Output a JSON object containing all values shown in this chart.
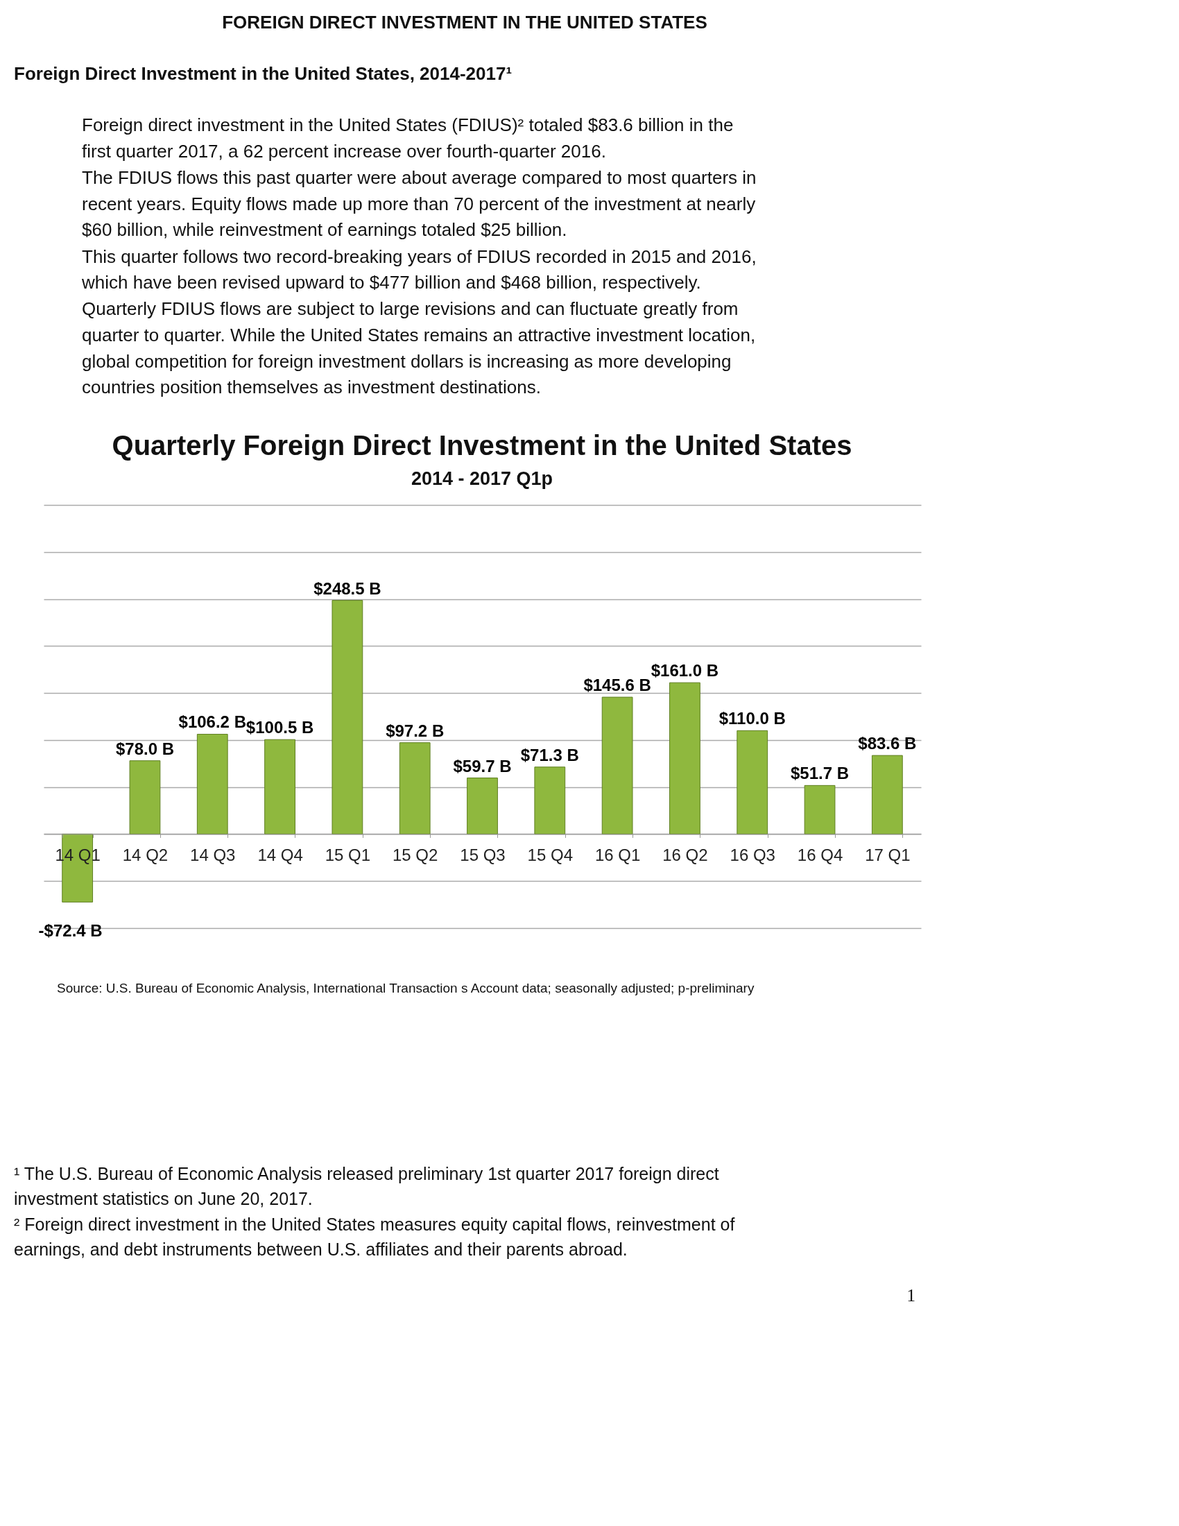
{
  "chart_data": {
    "type": "bar",
    "title": "Quarterly Foreign Direct Investment in the United States",
    "subtitle": "2014 - 2017 Q1p",
    "categories": [
      "14 Q1",
      "14 Q2",
      "14 Q3",
      "14 Q4",
      "15 Q1",
      "15 Q2",
      "15 Q3",
      "15 Q4",
      "16 Q1",
      "16 Q2",
      "16 Q3",
      "16 Q4",
      "17 Q1"
    ],
    "values": [
      -72.4,
      78.0,
      106.2,
      100.5,
      248.5,
      97.2,
      59.7,
      71.3,
      145.6,
      161.0,
      110.0,
      51.7,
      83.6
    ],
    "value_labels": [
      "-$72.4 B",
      "$78.0 B",
      "$106.2 B",
      "$100.5 B",
      "$248.5 B",
      "$97.2 B",
      "$59.7 B",
      "$71.3 B",
      "$145.6 B",
      "$161.0 B",
      "$110.0 B",
      "$51.7 B",
      "$83.6 B"
    ],
    "color": "#8fb83e",
    "ylim": [
      -100,
      350
    ],
    "yticks": [
      {
        "value": -100,
        "label": null
      },
      {
        "value": -50,
        "label": null
      },
      {
        "value": 0,
        "label": null
      },
      {
        "value": 50,
        "label": null
      },
      {
        "value": 100,
        "label": null
      },
      {
        "value": 150,
        "label": null
      },
      {
        "value": 200,
        "label": null
      },
      {
        "value": 250,
        "label": null
      },
      {
        "value": 300,
        "label": null
      },
      {
        "value": 350,
        "label": null
      }
    ],
    "tick_labels": "x",
    "grid": "y",
    "annotations": [
      "FOREIGN DIRECT INVESTMENT IN THE UNITED STATES",
      "Foreign Direct Investment in the United States, 2014-2017¹",
      "Foreign direct investment in the United States (FDIUS)² totaled $83.6 billion in the first quarter 2017, a 62 percent increase over fourth-quarter 2016.",
      "The FDIUS flows this past quarter were about average compared to most quarters in recent years. Equity flows made up more than 70 percent of the investment at nearly $60 billion, while reinvestment of earnings totaled $25 billion.",
      "This quarter follows two record-breaking years of FDIUS recorded in 2015 and 2016, which have been revised upward to $477 billion and $468 billion, respectively.",
      "Quarterly FDIUS flows are subject to large revisions and can fluctuate greatly from quarter to quarter. While the United States remains an attractive investment location, global competition for foreign investment dollars is increasing as more developing countries position themselves as investment destinations.",
      "Source:  U.S. Bureau of Economic Analysis, International Transaction s Account data; seasonally adjusted; p-preliminary",
      "¹ The U.S. Bureau of Economic Analysis released preliminary 1st quarter 2017 foreign direct investment statistics on June 20, 2017.",
      "² Foreign direct investment in the United States measures equity capital flows, reinvestment of earnings, and debt instruments between U.S. affiliates and their parents abroad.",
      "1"
    ]
  }
}
